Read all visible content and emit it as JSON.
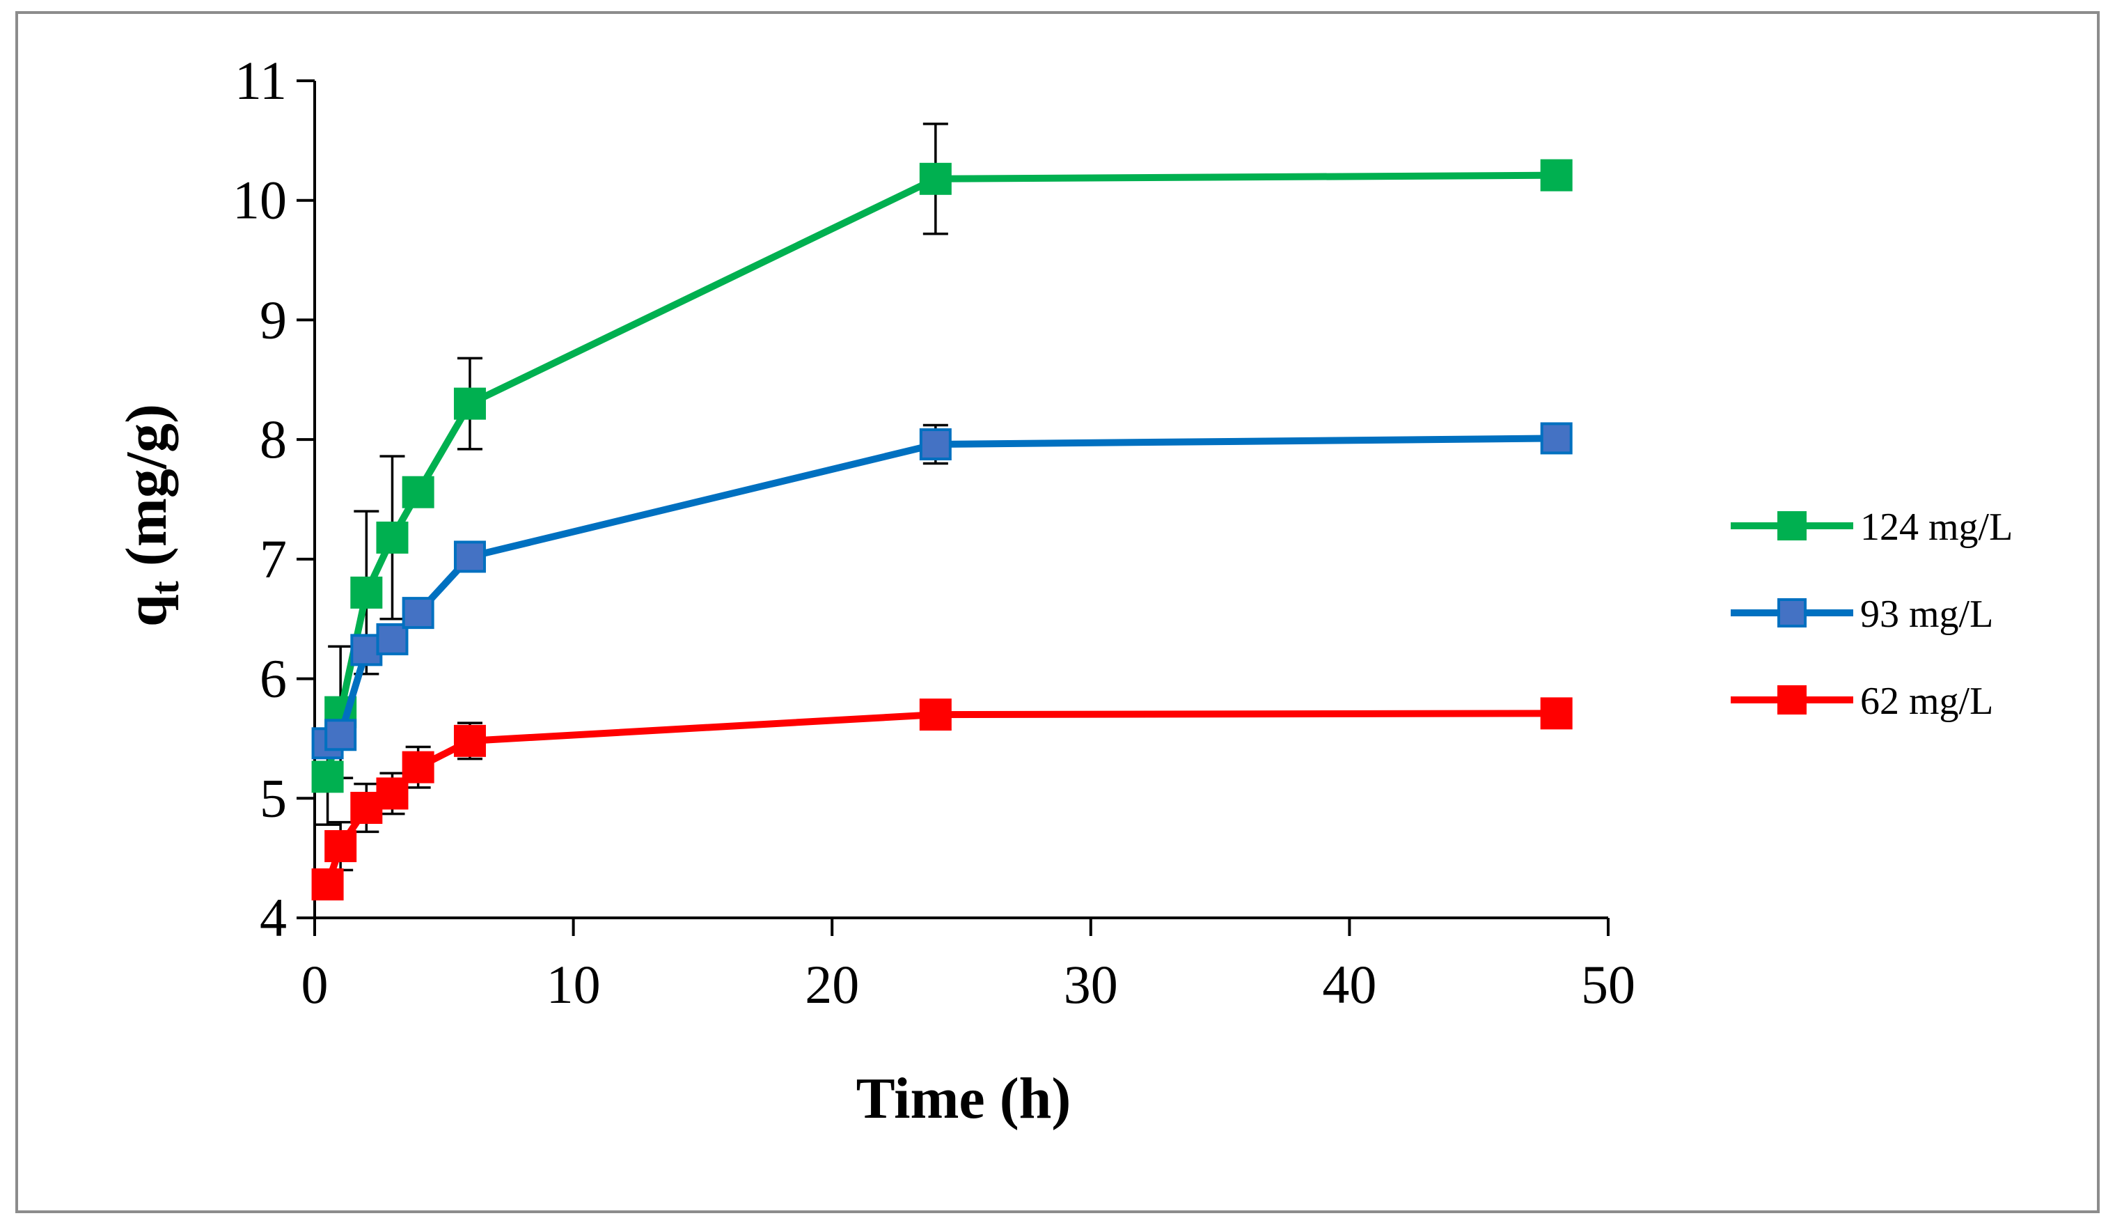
{
  "chart_data": {
    "type": "line",
    "title": "",
    "xlabel": "Time (h)",
    "ylabel_main": "q",
    "ylabel_sub": "t",
    "ylabel_rest": " (mg/g)",
    "xlim": [
      0,
      50
    ],
    "ylim": [
      4,
      11
    ],
    "xticks": [
      0,
      10,
      20,
      30,
      40,
      50
    ],
    "yticks": [
      4,
      5,
      6,
      7,
      8,
      9,
      10,
      11
    ],
    "grid": false,
    "legend_position": "right",
    "x": [
      0.5,
      1,
      2,
      3,
      4,
      6,
      24,
      48
    ],
    "series": [
      {
        "name": "124 mg/L",
        "color": "#00b050",
        "values": [
          5.18,
          5.72,
          6.72,
          7.18,
          7.56,
          8.3,
          10.18,
          10.21
        ],
        "errors": [
          0.4,
          0.55,
          0.68,
          0.68,
          0.0,
          0.38,
          0.46,
          0.0
        ]
      },
      {
        "name": "93 mg/L",
        "color": "#4472c4",
        "line_color": "#0070c0",
        "values": [
          5.46,
          5.53,
          6.24,
          6.33,
          6.55,
          7.02,
          7.96,
          8.01
        ],
        "errors": [
          0.0,
          0.0,
          0.0,
          0.0,
          0.0,
          0.0,
          0.16,
          0.0
        ]
      },
      {
        "name": "62 mg/L",
        "color": "#ff0000",
        "values": [
          4.28,
          4.6,
          4.92,
          5.04,
          5.26,
          5.48,
          5.7,
          5.71
        ],
        "errors": [
          0.0,
          0.2,
          0.2,
          0.17,
          0.17,
          0.15,
          0.0,
          0.0
        ]
      }
    ]
  }
}
